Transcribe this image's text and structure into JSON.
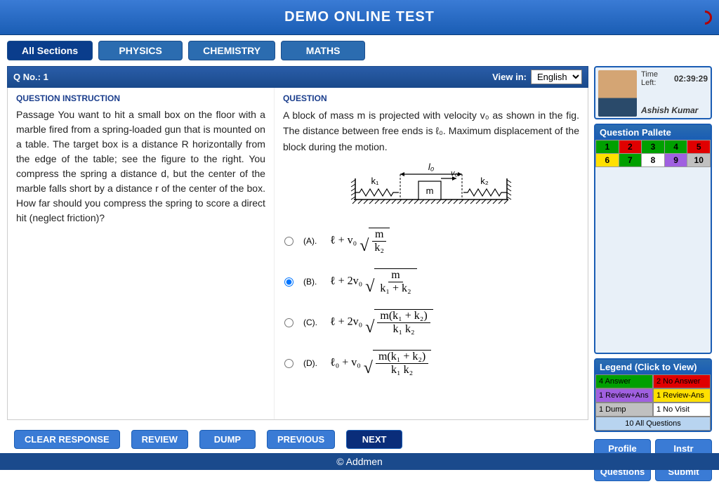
{
  "header": {
    "title": "DEMO ONLINE TEST"
  },
  "tabs": {
    "items": [
      "All Sections",
      "PHYSICS",
      "CHEMISTRY",
      "MATHS"
    ],
    "active_index": 0
  },
  "question_bar": {
    "qno_label": "Q No.: 1",
    "viewin_label": "View in:",
    "lang": "English"
  },
  "instruction": {
    "label": "QUESTION INSTRUCTION",
    "text": "Passage You want to hit a small box on the floor with a marble fired from a spring-loaded gun that is mounted on a table. The target box is a distance R horizontally from the edge of the table; see the figure to the right. You compress the spring a distance d, but the center of the marble falls short by a distance r of the center of the box. How far should you compress the spring to score a direct hit (neglect friction)?"
  },
  "question": {
    "label": "QUESTION",
    "text": "A block of mass m is projected with velocity v₀ as shown in the fig. The distance between free ends is ℓ₀. Maximum displacement of the block during the motion."
  },
  "options": {
    "labels": [
      "(A).",
      "(B).",
      "(C).",
      "(D)."
    ],
    "selected_index": 1,
    "formulas": [
      {
        "prefix": "ℓ + v₀",
        "num": "m",
        "den": "k₂"
      },
      {
        "prefix": "ℓ + 2v₀",
        "num": "m",
        "den": "k₁ + k₂"
      },
      {
        "prefix": "ℓ + 2v₀",
        "num": "m(k₁ + k₂)",
        "den": "k₁ k₂"
      },
      {
        "prefix": "ℓ₀ + v₀",
        "num": "m(k₁ + k₂)",
        "den": "k₁ k₂"
      }
    ]
  },
  "buttons": {
    "clear": "CLEAR RESPONSE",
    "review": "REVIEW",
    "dump": "DUMP",
    "prev": "PREVIOUS",
    "next": "NEXT"
  },
  "user": {
    "time_label": "Time Left:",
    "time_value": "02:39:29",
    "name": "Ashish Kumar"
  },
  "pallete": {
    "title": "Question Pallete",
    "cells": [
      {
        "n": "1",
        "bg": "#00a000",
        "fg": "#000"
      },
      {
        "n": "2",
        "bg": "#e00000",
        "fg": "#000"
      },
      {
        "n": "3",
        "bg": "#00a000",
        "fg": "#000"
      },
      {
        "n": "4",
        "bg": "#00a000",
        "fg": "#000"
      },
      {
        "n": "5",
        "bg": "#e00000",
        "fg": "#000"
      },
      {
        "n": "6",
        "bg": "#ffe000",
        "fg": "#000"
      },
      {
        "n": "7",
        "bg": "#00a000",
        "fg": "#000"
      },
      {
        "n": "8",
        "bg": "#ffffff",
        "fg": "#000"
      },
      {
        "n": "9",
        "bg": "#a060e0",
        "fg": "#000"
      },
      {
        "n": "10",
        "bg": "#c0c0c0",
        "fg": "#000"
      }
    ]
  },
  "legend": {
    "title": "Legend (Click to View)",
    "items": [
      {
        "label": "4 Answer",
        "bg": "#00a000",
        "fg": "#000"
      },
      {
        "label": "2 No Answer",
        "bg": "#e00000",
        "fg": "#000"
      },
      {
        "label": "1 Review+Ans",
        "bg": "#a060e0",
        "fg": "#000"
      },
      {
        "label": "1 Review-Ans",
        "bg": "#ffe000",
        "fg": "#000"
      },
      {
        "label": "1 Dump",
        "bg": "#c0c0c0",
        "fg": "#000"
      },
      {
        "label": "1 No Visit",
        "bg": "#ffffff",
        "fg": "#000"
      }
    ],
    "all": "10 All Questions"
  },
  "sidebar_buttons": [
    "Profile",
    "Instr",
    "Questions",
    "Submit"
  ],
  "footer": "© Addmen",
  "diagram": {
    "l0": "l₀",
    "k1": "k₁",
    "k2": "k₂",
    "m": "m",
    "v0": "v₀"
  }
}
